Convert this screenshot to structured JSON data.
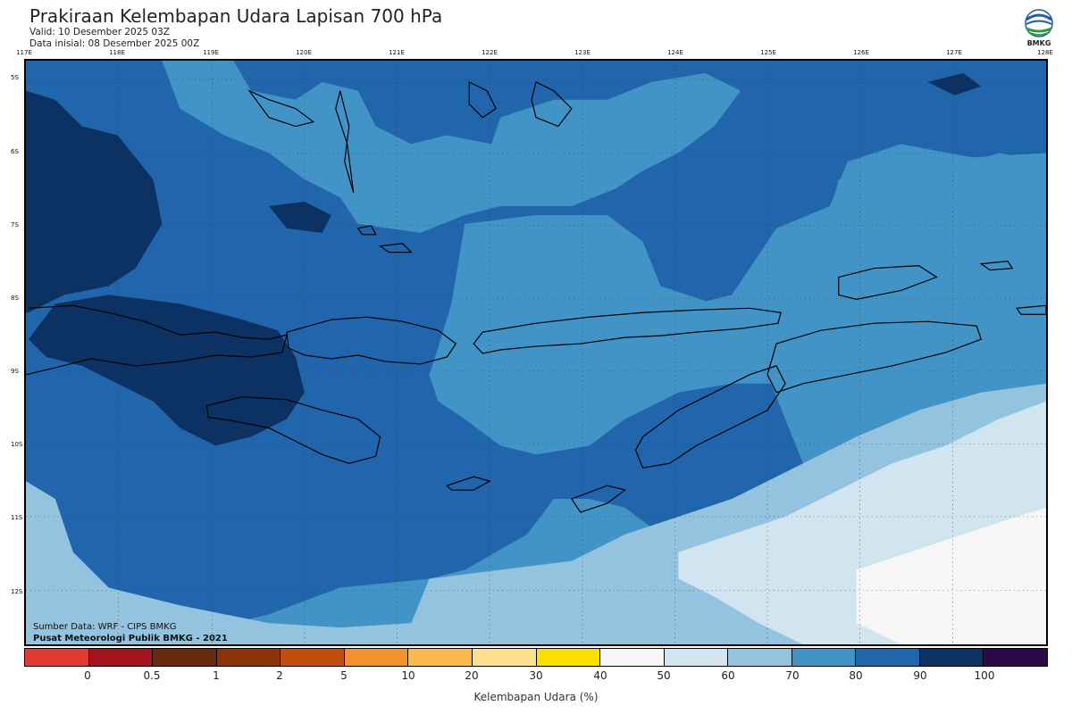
{
  "header": {
    "title": "Prakiraan Kelembapan Udara Lapisan 700 hPa",
    "valid": "Valid: 10 Desember 2025 03Z",
    "init": "Data inisial: 08 Desember 2025 00Z",
    "logo_text": "BMKG"
  },
  "map": {
    "lon_labels": [
      "117E",
      "118E",
      "119E",
      "120E",
      "121E",
      "122E",
      "123E",
      "124E",
      "125E",
      "126E",
      "127E",
      "128E"
    ],
    "lat_labels": [
      "5S",
      "6S",
      "7S",
      "8S",
      "9S",
      "10S",
      "11S",
      "12S"
    ],
    "credit_source": "Sumber Data: WRF - CIPS BMKG",
    "credit_center": "Pusat Meteorologi Publik BMKG - 2021"
  },
  "colorbar": {
    "title": "Kelembapan Udara (%)",
    "ticks": [
      "0",
      "0.5",
      "1",
      "2",
      "5",
      "10",
      "20",
      "30",
      "40",
      "50",
      "60",
      "70",
      "80",
      "90",
      "100"
    ],
    "colors": [
      "#e03a32",
      "#a5141d",
      "#6b2a10",
      "#8c3307",
      "#c04e0c",
      "#f2922e",
      "#fbb94e",
      "#fde08f",
      "#fbe000",
      "#f6f6f6",
      "#d1e5f0",
      "#93c3df",
      "#4394c6",
      "#2166ac",
      "#0b3262",
      "#2b0a45"
    ]
  },
  "legend_icons": [
    "bmkg-logo-icon"
  ]
}
